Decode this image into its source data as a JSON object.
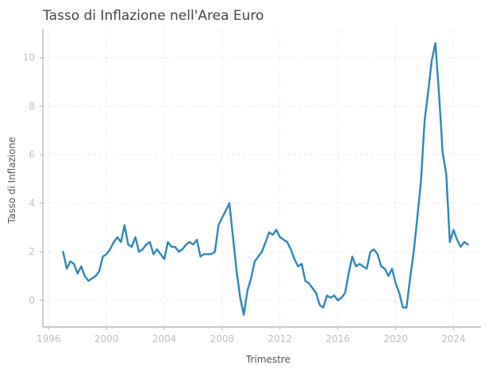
{
  "chart_data": {
    "type": "line",
    "title": "Tasso di Inflazione nell'Area Euro",
    "xlabel": "Trimestre",
    "ylabel": "Tasso di Inflazione",
    "xlim": [
      1995.6,
      2025.9
    ],
    "ylim": [
      -1.1,
      11.2
    ],
    "x_ticks": [
      1996,
      2000,
      2004,
      2008,
      2012,
      2016,
      2020,
      2024
    ],
    "y_ticks": [
      0,
      2,
      4,
      6,
      8,
      10
    ],
    "grid": true,
    "colors": {
      "line": "#2e86b8"
    },
    "series": [
      {
        "x": [
          1997.0,
          1997.25,
          1997.5,
          1997.75,
          1998.0,
          1998.25,
          1998.5,
          1998.75,
          1999.0,
          1999.25,
          1999.5,
          1999.75,
          2000.0,
          2000.25,
          2000.5,
          2000.75,
          2001.0,
          2001.25,
          2001.5,
          2001.75,
          2002.0,
          2002.25,
          2002.5,
          2002.75,
          2003.0,
          2003.25,
          2003.5,
          2003.75,
          2004.0,
          2004.25,
          2004.5,
          2004.75,
          2005.0,
          2005.25,
          2005.5,
          2005.75,
          2006.0,
          2006.25,
          2006.5,
          2006.75,
          2007.0,
          2007.25,
          2007.5,
          2007.75,
          2008.0,
          2008.25,
          2008.5,
          2008.75,
          2009.0,
          2009.25,
          2009.5,
          2009.75,
          2010.0,
          2010.25,
          2010.5,
          2010.75,
          2011.0,
          2011.25,
          2011.5,
          2011.75,
          2012.0,
          2012.25,
          2012.5,
          2012.75,
          2013.0,
          2013.25,
          2013.5,
          2013.75,
          2014.0,
          2014.25,
          2014.5,
          2014.75,
          2015.0,
          2015.25,
          2015.5,
          2015.75,
          2016.0,
          2016.25,
          2016.5,
          2016.75,
          2017.0,
          2017.25,
          2017.5,
          2017.75,
          2018.0,
          2018.25,
          2018.5,
          2018.75,
          2019.0,
          2019.25,
          2019.5,
          2019.75,
          2020.0,
          2020.25,
          2020.5,
          2020.75,
          2021.0,
          2021.25,
          2021.5,
          2021.75,
          2022.0,
          2022.25,
          2022.5,
          2022.75,
          2023.0,
          2023.25,
          2023.5,
          2023.75,
          2024.0,
          2024.25,
          2024.5,
          2024.75,
          2025.0
        ],
        "values": [
          2.0,
          1.3,
          1.6,
          1.5,
          1.1,
          1.4,
          1.0,
          0.8,
          0.9,
          1.0,
          1.2,
          1.8,
          1.9,
          2.1,
          2.4,
          2.6,
          2.4,
          3.1,
          2.3,
          2.2,
          2.6,
          2.0,
          2.1,
          2.3,
          2.4,
          1.9,
          2.1,
          1.9,
          1.7,
          2.4,
          2.2,
          2.2,
          2.0,
          2.1,
          2.3,
          2.4,
          2.3,
          2.5,
          1.8,
          1.9,
          1.9,
          1.9,
          2.0,
          3.1,
          3.4,
          3.7,
          4.0,
          2.6,
          1.2,
          0.1,
          -0.6,
          0.4,
          0.9,
          1.6,
          1.8,
          2.0,
          2.4,
          2.8,
          2.7,
          2.9,
          2.6,
          2.5,
          2.4,
          2.1,
          1.7,
          1.4,
          1.5,
          0.8,
          0.7,
          0.5,
          0.3,
          -0.2,
          -0.3,
          0.2,
          0.1,
          0.2,
          0.0,
          0.1,
          0.3,
          1.1,
          1.8,
          1.4,
          1.5,
          1.4,
          1.3,
          2.0,
          2.1,
          1.9,
          1.4,
          1.3,
          1.0,
          1.3,
          0.7,
          0.3,
          -0.3,
          -0.3,
          0.9,
          2.0,
          3.4,
          4.9,
          7.4,
          8.6,
          9.9,
          10.6,
          8.5,
          6.1,
          5.2,
          2.4,
          2.9,
          2.5,
          2.2,
          2.4,
          2.3
        ]
      }
    ]
  }
}
